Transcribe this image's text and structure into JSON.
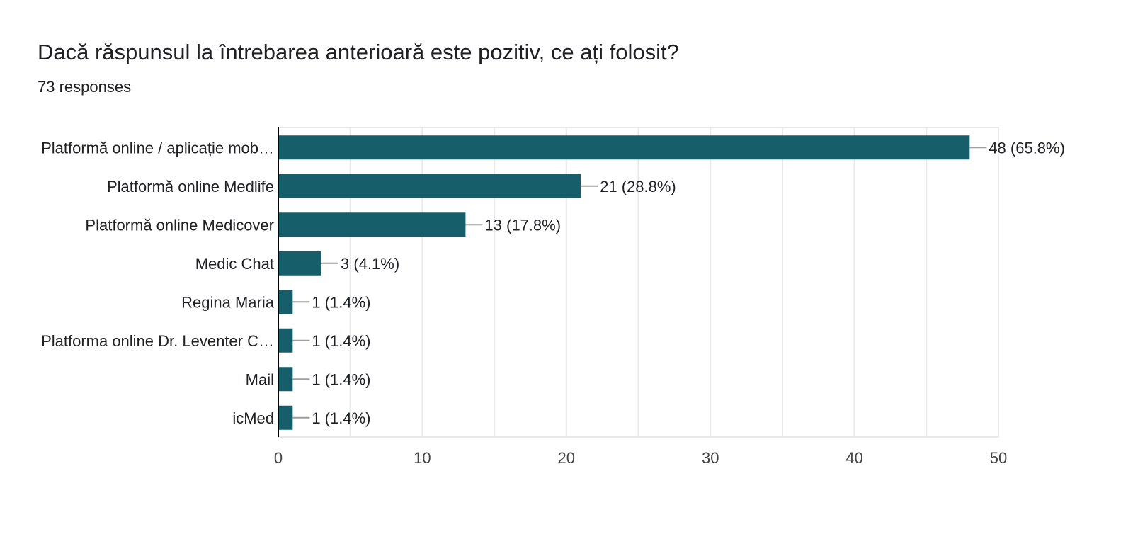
{
  "title": "Dacă răspunsul la întrebarea anterioară este pozitiv, ce ați folosit?",
  "subtitle": "73 responses",
  "colors": {
    "bar": "#155e6a",
    "grid": "#e6e8ea",
    "axis": "#000000",
    "connector": "#9e9e9e"
  },
  "chart_data": {
    "type": "bar",
    "orientation": "horizontal",
    "categories": [
      "Platformă online / aplicație mob…",
      "Platformă online Medlife",
      "Platformă online Medicover",
      "Medic Chat",
      "Regina Maria",
      "Platforma online Dr. Leventer C…",
      "Mail",
      "icMed"
    ],
    "values": [
      48,
      21,
      13,
      3,
      1,
      1,
      1,
      1
    ],
    "labels": [
      "48 (65.8%)",
      "21 (28.8%)",
      "13 (17.8%)",
      "3 (4.1%)",
      "1 (1.4%)",
      "1 (1.4%)",
      "1 (1.4%)",
      "1 (1.4%)"
    ],
    "xlim": [
      0,
      50
    ],
    "xticks": [
      "0",
      "10",
      "20",
      "30",
      "40",
      "50"
    ],
    "grid": true,
    "legend": "none"
  }
}
